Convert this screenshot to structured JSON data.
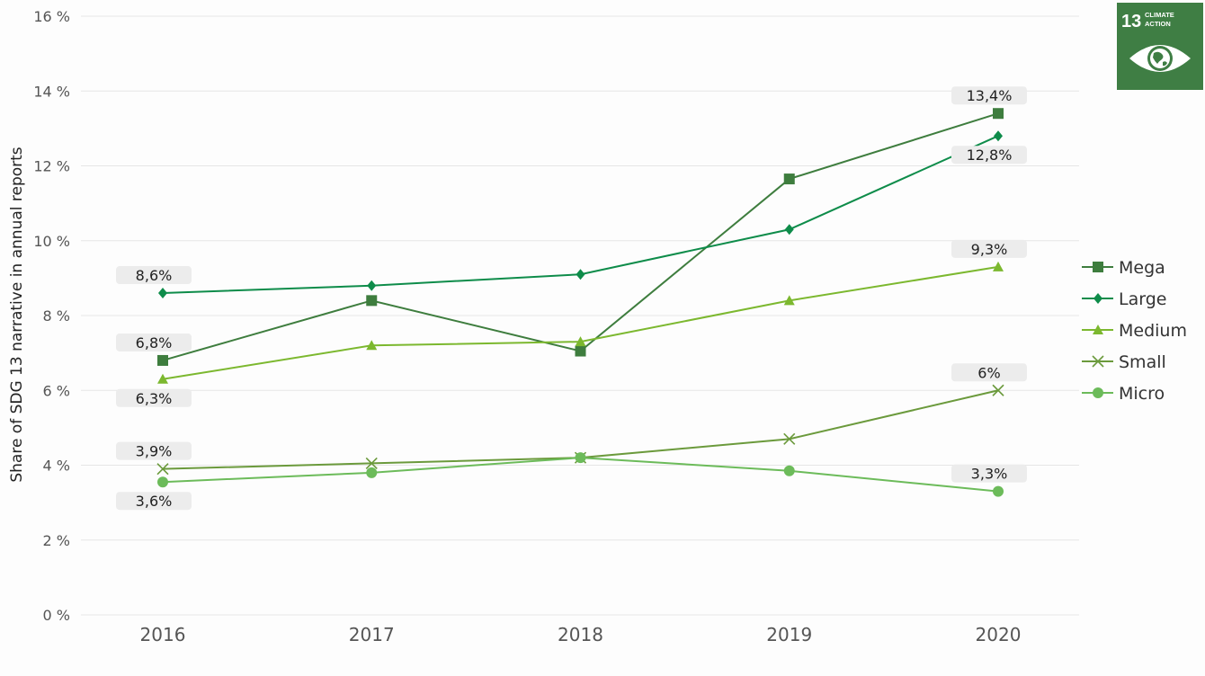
{
  "chart_data": {
    "type": "line",
    "ylabel": "Share of SDG 13 narrative in annual reports",
    "xlabel": "",
    "x": [
      "2016",
      "2017",
      "2018",
      "2019",
      "2020"
    ],
    "ylim": [
      0,
      16
    ],
    "yticks": [
      0,
      2,
      4,
      6,
      8,
      10,
      12,
      14,
      16
    ],
    "ytick_labels": [
      "0 %",
      "2 %",
      "4 %",
      "6 %",
      "8 %",
      "10 %",
      "12 %",
      "14 %",
      "16 %"
    ],
    "grid": true,
    "legend_position": "right",
    "series": [
      {
        "name": "Mega",
        "marker": "square",
        "color": "#3e7d3e",
        "values": [
          6.8,
          8.4,
          7.05,
          11.65,
          13.4
        ]
      },
      {
        "name": "Large",
        "marker": "diamond",
        "color": "#0e8c4a",
        "values": [
          8.6,
          8.8,
          9.1,
          10.3,
          12.8
        ]
      },
      {
        "name": "Medium",
        "marker": "triangle",
        "color": "#7cb82f",
        "values": [
          6.3,
          7.2,
          7.3,
          8.4,
          9.3
        ]
      },
      {
        "name": "Small",
        "marker": "x",
        "color": "#6b9a3c",
        "values": [
          3.9,
          4.05,
          4.2,
          4.7,
          6.0
        ]
      },
      {
        "name": "Micro",
        "marker": "circle",
        "color": "#6cbb5a",
        "values": [
          3.55,
          3.8,
          4.2,
          3.85,
          3.3
        ]
      }
    ],
    "data_labels": [
      {
        "series": "Large",
        "index": 0,
        "text": "8,6%",
        "position": "above"
      },
      {
        "series": "Mega",
        "index": 0,
        "text": "6,8%",
        "position": "above"
      },
      {
        "series": "Medium",
        "index": 0,
        "text": "6,3%",
        "position": "below"
      },
      {
        "series": "Small",
        "index": 0,
        "text": "3,9%",
        "position": "above"
      },
      {
        "series": "Micro",
        "index": 0,
        "text": "3,6%",
        "position": "below"
      },
      {
        "series": "Mega",
        "index": 4,
        "text": "13,4%",
        "position": "above"
      },
      {
        "series": "Large",
        "index": 4,
        "text": "12,8%",
        "position": "below"
      },
      {
        "series": "Medium",
        "index": 4,
        "text": "9,3%",
        "position": "above"
      },
      {
        "series": "Small",
        "index": 4,
        "text": "6%",
        "position": "above"
      },
      {
        "series": "Micro",
        "index": 4,
        "text": "3,3%",
        "position": "above"
      }
    ]
  },
  "badge": {
    "number": "13",
    "line1": "CLIMATE",
    "line2": "ACTION",
    "color": "#3f7e44",
    "icon": "eye-globe-icon"
  }
}
